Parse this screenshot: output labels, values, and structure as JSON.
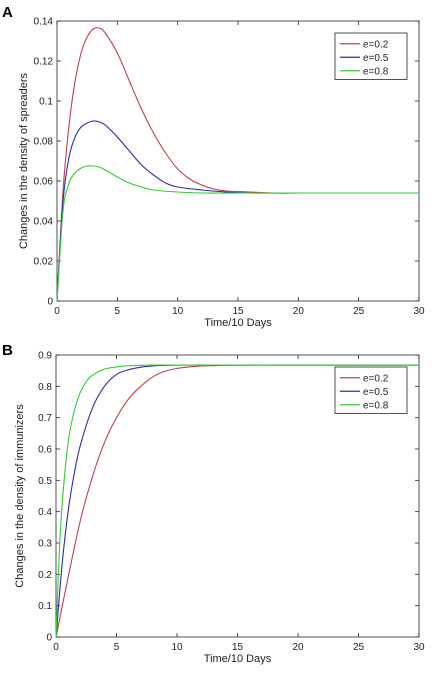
{
  "chart_data": [
    {
      "type": "line",
      "panel_label": "A",
      "title": "",
      "xlabel": "Time/10 Days",
      "ylabel": "Changes in the density of spreaders",
      "xlim": [
        0,
        30
      ],
      "ylim": [
        0,
        0.14
      ],
      "x_ticks": [
        "0",
        "5",
        "10",
        "15",
        "20",
        "25",
        "30"
      ],
      "y_ticks": [
        "0",
        "0.02",
        "0.04",
        "0.06",
        "0.08",
        "0.1",
        "0.12",
        "0.14"
      ],
      "grid": false,
      "legend_position": "top-right",
      "series": [
        {
          "name": "e=0.2",
          "color": "#c0404a",
          "x": [
            0,
            0.5,
            1,
            1.5,
            2,
            2.5,
            3,
            3.5,
            4,
            5,
            6,
            7,
            8,
            9,
            10,
            11,
            12,
            13,
            14,
            16,
            18,
            20,
            25,
            30
          ],
          "y": [
            0,
            0.055,
            0.088,
            0.11,
            0.124,
            0.132,
            0.136,
            0.1365,
            0.134,
            0.124,
            0.11,
            0.096,
            0.084,
            0.074,
            0.066,
            0.061,
            0.058,
            0.056,
            0.055,
            0.0545,
            0.054,
            0.054,
            0.054,
            0.054
          ]
        },
        {
          "name": "e=0.5",
          "color": "#2b2bb8",
          "x": [
            0,
            0.5,
            1,
            1.5,
            2,
            2.5,
            3,
            3.5,
            4,
            5,
            6,
            7,
            8,
            9,
            10,
            12,
            14,
            16,
            20,
            25,
            30
          ],
          "y": [
            0,
            0.05,
            0.072,
            0.082,
            0.087,
            0.089,
            0.09,
            0.0895,
            0.088,
            0.082,
            0.075,
            0.068,
            0.063,
            0.059,
            0.057,
            0.0555,
            0.0545,
            0.054,
            0.054,
            0.054,
            0.054
          ]
        },
        {
          "name": "e=0.8",
          "color": "#33cc33",
          "x": [
            0,
            0.5,
            1,
            1.5,
            2,
            2.5,
            3,
            3.5,
            4,
            5,
            6,
            7,
            8,
            10,
            12,
            15,
            20,
            25,
            30
          ],
          "y": [
            0,
            0.045,
            0.059,
            0.064,
            0.0665,
            0.0675,
            0.0675,
            0.067,
            0.0655,
            0.062,
            0.059,
            0.057,
            0.0555,
            0.0545,
            0.054,
            0.054,
            0.054,
            0.054,
            0.054
          ]
        }
      ]
    },
    {
      "type": "line",
      "panel_label": "B",
      "title": "",
      "xlabel": "Time/10 Days",
      "ylabel": "Changes in the density of immunizers",
      "xlim": [
        0,
        30
      ],
      "ylim": [
        0,
        0.9
      ],
      "x_ticks": [
        "0",
        "5",
        "10",
        "15",
        "20",
        "25",
        "30"
      ],
      "y_ticks": [
        "0",
        "0.1",
        "0.2",
        "0.3",
        "0.4",
        "0.5",
        "0.6",
        "0.7",
        "0.8",
        "0.9"
      ],
      "grid": false,
      "legend_position": "top-right",
      "series": [
        {
          "name": "e=0.2",
          "color": "#c0404a",
          "x": [
            0,
            1,
            2,
            3,
            4,
            5,
            6,
            7,
            8,
            9,
            10,
            11,
            12,
            13,
            14,
            16,
            18,
            20,
            25,
            30
          ],
          "y": [
            0,
            0.19,
            0.37,
            0.51,
            0.62,
            0.7,
            0.76,
            0.8,
            0.83,
            0.848,
            0.857,
            0.862,
            0.865,
            0.866,
            0.867,
            0.868,
            0.868,
            0.868,
            0.868,
            0.868
          ]
        },
        {
          "name": "e=0.5",
          "color": "#2b2bb8",
          "x": [
            0,
            0.5,
            1,
            1.5,
            2,
            3,
            4,
            5,
            6,
            7,
            8,
            9,
            10,
            12,
            14,
            20,
            30
          ],
          "y": [
            0,
            0.23,
            0.4,
            0.52,
            0.61,
            0.73,
            0.8,
            0.838,
            0.853,
            0.861,
            0.865,
            0.867,
            0.868,
            0.868,
            0.868,
            0.868,
            0.868
          ]
        },
        {
          "name": "e=0.8",
          "color": "#33cc33",
          "x": [
            0,
            0.25,
            0.5,
            1,
            1.5,
            2,
            2.5,
            3,
            4,
            5,
            6,
            7,
            8,
            10,
            15,
            20,
            30
          ],
          "y": [
            0,
            0.25,
            0.42,
            0.62,
            0.72,
            0.78,
            0.815,
            0.835,
            0.855,
            0.862,
            0.866,
            0.867,
            0.868,
            0.868,
            0.868,
            0.868,
            0.868
          ]
        }
      ]
    }
  ]
}
